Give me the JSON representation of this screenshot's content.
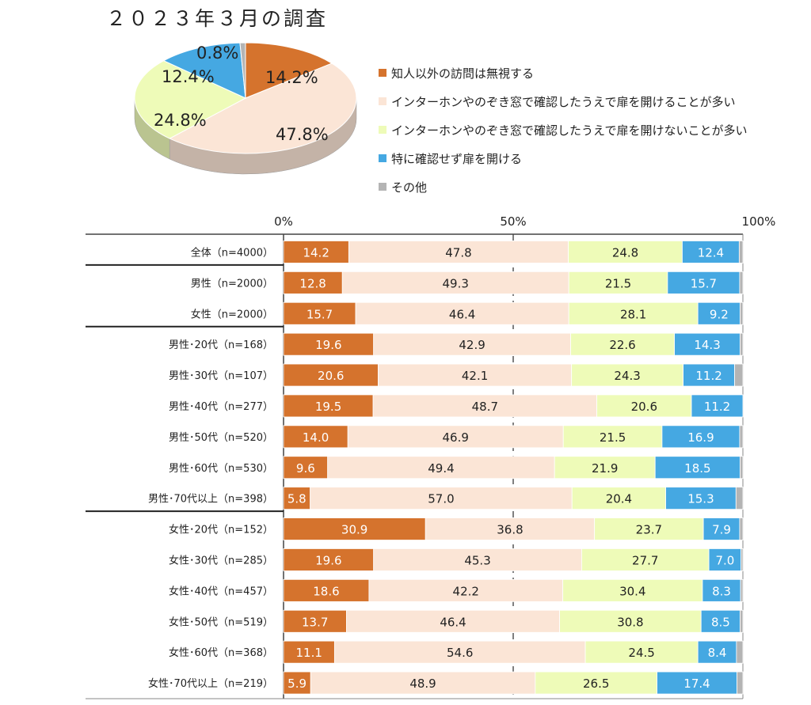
{
  "chart_data": [
    {
      "type": "pie",
      "title": "２０２３年３月の調査",
      "slices": [
        {
          "label": "知人以外の訪問は無視する",
          "value": 14.2,
          "color": "#d5732d"
        },
        {
          "label": "インターホンやのぞき窓で確認したうえで扉を開けることが多い",
          "value": 47.8,
          "color": "#fbe5d6"
        },
        {
          "label": "インターホンやのぞき窓で確認したうえで扉を開けないことが多い",
          "value": 24.8,
          "color": "#eefbb8"
        },
        {
          "label": "特に確認せず扉を開ける",
          "value": 12.4,
          "color": "#45a8e2"
        },
        {
          "label": "その他",
          "value": 0.8,
          "color": "#b4b4b4"
        }
      ],
      "value_labels": [
        "14.2%",
        "47.8%",
        "24.8%",
        "12.4%",
        "0.8%"
      ],
      "legend": "right"
    },
    {
      "type": "bar",
      "orientation": "horizontal",
      "stacked": true,
      "xlim": [
        0,
        100
      ],
      "x_ticks": [
        "0%",
        "50%",
        "100%"
      ],
      "categories": [
        "全体（n=4000）",
        "男性（n=2000）",
        "女性（n=2000）",
        "男性･20代（n=168）",
        "男性･30代（n=107）",
        "男性･40代（n=277）",
        "男性･50代（n=520）",
        "男性･60代（n=530）",
        "男性･70代以上（n=398）",
        "女性･20代（n=152）",
        "女性･30代（n=285）",
        "女性･40代（n=457）",
        "女性･50代（n=519）",
        "女性･60代（n=368）",
        "女性･70代以上（n=219）"
      ],
      "group_breaks": [
        1,
        3,
        9
      ],
      "series": [
        {
          "values": [
            14.2,
            12.8,
            15.7,
            19.6,
            20.6,
            19.5,
            14.0,
            9.6,
            5.8,
            30.9,
            19.6,
            18.6,
            13.7,
            11.1,
            5.9
          ],
          "labels": [
            "14.2",
            "12.8",
            "15.7",
            "19.6",
            "20.6",
            "19.5",
            "14.0",
            "9.6",
            "5.8",
            "30.9",
            "19.6",
            "18.6",
            "13.7",
            "11.1",
            "5.9"
          ],
          "color": "#d5732d",
          "text_color": "#ffffff"
        },
        {
          "values": [
            47.8,
            49.3,
            46.4,
            42.9,
            42.1,
            48.7,
            46.9,
            49.4,
            57.0,
            36.8,
            45.3,
            42.2,
            46.4,
            54.6,
            48.9
          ],
          "labels": [
            "47.8",
            "49.3",
            "46.4",
            "42.9",
            "42.1",
            "48.7",
            "46.9",
            "49.4",
            "57.0",
            "36.8",
            "45.3",
            "42.2",
            "46.4",
            "54.6",
            "48.9"
          ],
          "color": "#fbe5d6",
          "text_color": "#222222"
        },
        {
          "values": [
            24.8,
            21.5,
            28.1,
            22.6,
            24.3,
            20.6,
            21.5,
            21.9,
            20.4,
            23.7,
            27.7,
            30.4,
            30.8,
            24.5,
            26.5
          ],
          "labels": [
            "24.8",
            "21.5",
            "28.1",
            "22.6",
            "24.3",
            "20.6",
            "21.5",
            "21.9",
            "20.4",
            "23.7",
            "27.7",
            "30.4",
            "30.8",
            "24.5",
            "26.5"
          ],
          "color": "#eefbb8",
          "text_color": "#222222"
        },
        {
          "values": [
            12.4,
            15.7,
            9.2,
            14.3,
            11.2,
            11.2,
            16.9,
            18.5,
            15.3,
            7.9,
            7.0,
            8.3,
            8.5,
            8.4,
            17.4
          ],
          "labels": [
            "12.4",
            "15.7",
            "9.2",
            "14.3",
            "11.2",
            "11.2",
            "16.9",
            "18.5",
            "15.3",
            "7.9",
            "7.0",
            "8.3",
            "8.5",
            "8.4",
            "17.4"
          ],
          "color": "#45a8e2",
          "text_color": "#ffffff"
        },
        {
          "values": [
            0.8,
            0.7,
            0.6,
            0.6,
            1.8,
            0.0,
            0.7,
            0.6,
            1.5,
            0.7,
            0.4,
            0.5,
            0.6,
            1.4,
            1.3
          ],
          "color": "#b4b4b4"
        }
      ]
    }
  ]
}
